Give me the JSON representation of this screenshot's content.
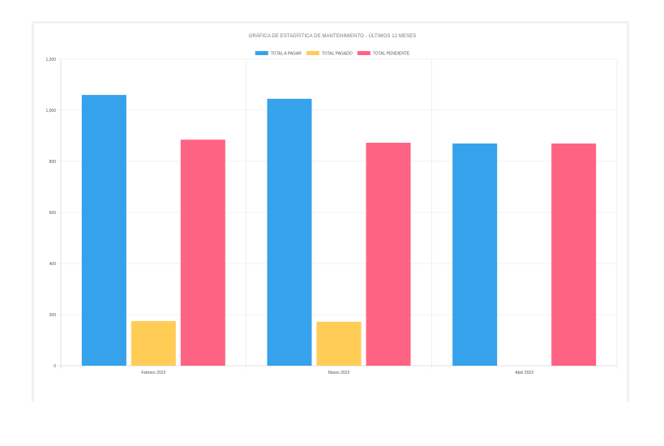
{
  "chart_data": {
    "type": "bar",
    "title": "GRÁFICA DE ESTADÍSTICA DE MANTENIMIENTO - ÚLTIMOS 12 MESES",
    "categories": [
      "Febrero 2023",
      "Marzo 2023",
      "Abril 2023"
    ],
    "series": [
      {
        "name": "TOTAL A PAGAR",
        "color": "#36a2eb",
        "values": [
          1060,
          1045,
          870
        ]
      },
      {
        "name": "TOTAL PAGADO",
        "color": "#ffcd56",
        "values": [
          175,
          172,
          0
        ]
      },
      {
        "name": "TOTAL PENDIENTE",
        "color": "#ff6384",
        "values": [
          885,
          873,
          870
        ]
      }
    ],
    "y_ticks": [
      "0",
      "200",
      "400",
      "600",
      "800",
      "1,000",
      "1,200"
    ],
    "ylim": [
      0,
      1200
    ],
    "xlabel": "",
    "ylabel": "",
    "legend_position": "top-center",
    "grid": true
  }
}
